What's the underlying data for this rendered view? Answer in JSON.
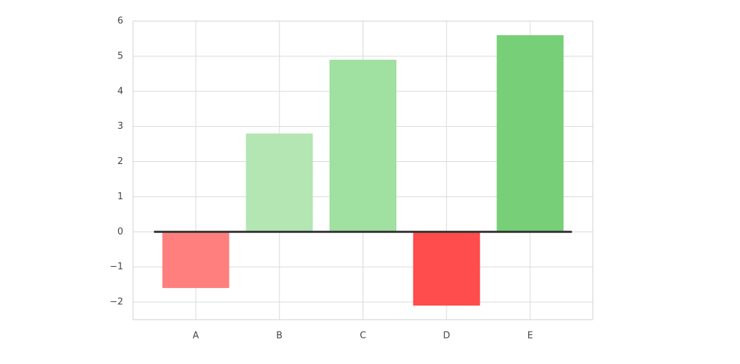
{
  "chart_data": {
    "type": "bar",
    "categories": [
      "A",
      "B",
      "C",
      "D",
      "E"
    ],
    "values": [
      -1.6,
      2.8,
      4.9,
      -2.1,
      5.6
    ],
    "colors": [
      "#ff7f7f",
      "#b3e6b3",
      "#a0e0a0",
      "#ff4c4c",
      "#77d077"
    ],
    "ylim": [
      -2.5,
      6
    ],
    "yticks": [
      {
        "value": -2,
        "label": "−2"
      },
      {
        "value": -1,
        "label": "−1"
      },
      0,
      1,
      2,
      3,
      4,
      5,
      6
    ],
    "grid": true
  }
}
